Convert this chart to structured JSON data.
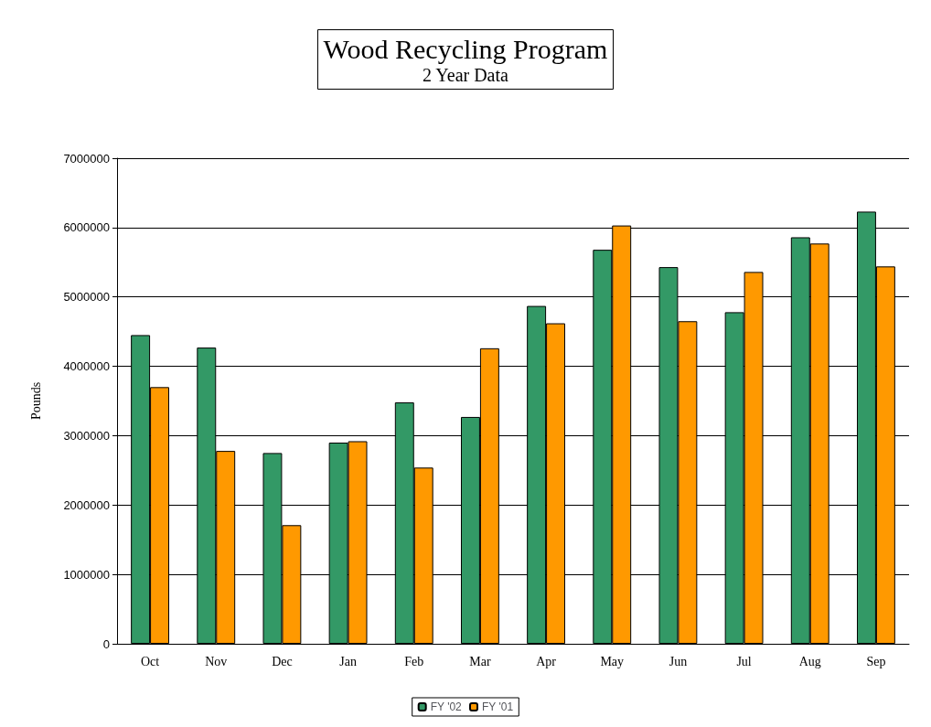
{
  "chart_data": {
    "type": "bar",
    "title": "Wood Recycling Program",
    "subtitle": "2 Year Data",
    "ylabel": "Pounds",
    "categories": [
      "Oct",
      "Nov",
      "Dec",
      "Jan",
      "Feb",
      "Mar",
      "Apr",
      "May",
      "Jun",
      "Jul",
      "Aug",
      "Sep"
    ],
    "series": [
      {
        "name": "FY '02",
        "color": "#339966",
        "values": [
          4450000,
          4270000,
          2750000,
          2900000,
          3480000,
          3270000,
          4870000,
          5680000,
          5430000,
          4780000,
          5860000,
          6230000
        ]
      },
      {
        "name": "FY '01",
        "color": "#ff9900",
        "values": [
          3700000,
          2780000,
          1710000,
          2920000,
          2540000,
          4260000,
          4620000,
          6030000,
          4650000,
          5360000,
          5770000,
          5440000
        ]
      }
    ],
    "ylim": [
      0,
      7000000
    ],
    "yticks": [
      0,
      1000000,
      2000000,
      3000000,
      4000000,
      5000000,
      6000000,
      7000000
    ],
    "grid": "y",
    "legend": "bottom"
  }
}
